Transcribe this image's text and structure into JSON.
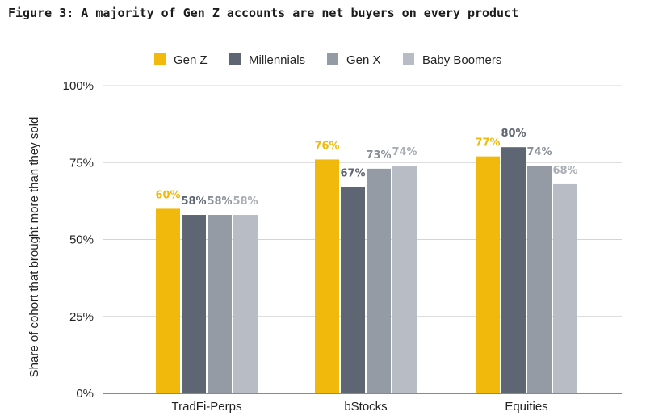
{
  "chart_data": {
    "type": "bar",
    "title": "Figure 3: A majority of Gen Z accounts are net buyers on every product",
    "xlabel": "",
    "ylabel": "Share of cohort that brought more than they sold",
    "ylim": [
      0,
      100
    ],
    "yticks": [
      "0%",
      "25%",
      "50%",
      "75%",
      "100%"
    ],
    "ytick_values": [
      0,
      25,
      50,
      75,
      100
    ],
    "categories": [
      "TradFi-Perps",
      "bStocks",
      "Equities"
    ],
    "legend_position": "top",
    "grid": true,
    "series": [
      {
        "name": "Gen Z",
        "color": "#F0B90B",
        "label_color": "#F0B90B",
        "values": [
          60,
          76,
          77
        ],
        "labels": [
          "60%",
          "76%",
          "77%"
        ]
      },
      {
        "name": "Millennials",
        "color": "#5E6673",
        "label_color": "#5E6673",
        "values": [
          58,
          67,
          80
        ],
        "labels": [
          "58%",
          "67%",
          "80%"
        ]
      },
      {
        "name": "Gen X",
        "color": "#959BA5",
        "label_color": "#8A9099",
        "values": [
          58,
          73,
          74
        ],
        "labels": [
          "58%",
          "73%",
          "74%"
        ]
      },
      {
        "name": "Baby Boomers",
        "color": "#B8BCC4",
        "label_color": "#A9ADB5",
        "values": [
          58,
          74,
          68
        ],
        "labels": [
          "58%",
          "74%",
          "68%"
        ]
      }
    ]
  }
}
